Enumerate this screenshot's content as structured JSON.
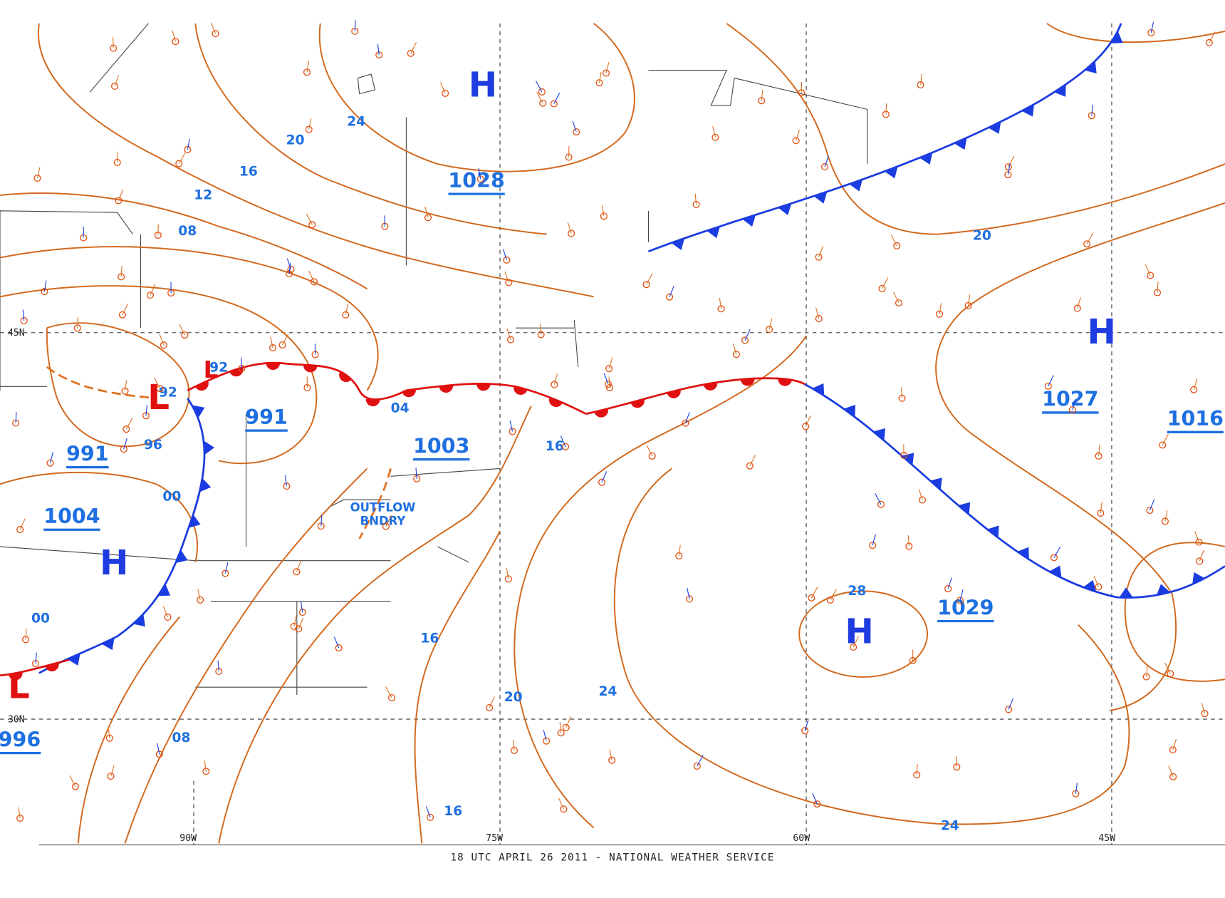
{
  "footer": "18 UTC APRIL 26 2011 - NATIONAL WEATHER SERVICE",
  "grid_labels": [
    "45N",
    "30N",
    "90W",
    "75W",
    "60W",
    "45W"
  ],
  "centers": [
    "H",
    "H",
    "H",
    "H",
    "L",
    "L",
    "L"
  ],
  "central_pressures": [
    "1028",
    "1003",
    "991",
    "991",
    "1004",
    "1027",
    "1016",
    "1029",
    "996"
  ],
  "isobar_labels": [
    "24",
    "20",
    "16",
    "12",
    "08",
    "04",
    "00",
    "96",
    "92",
    "92",
    "00",
    "20",
    "28",
    "16",
    "16",
    "24",
    "20",
    "24",
    "08",
    "16"
  ],
  "annotation": [
    "OUTFLOW",
    "BNDRY"
  ]
}
